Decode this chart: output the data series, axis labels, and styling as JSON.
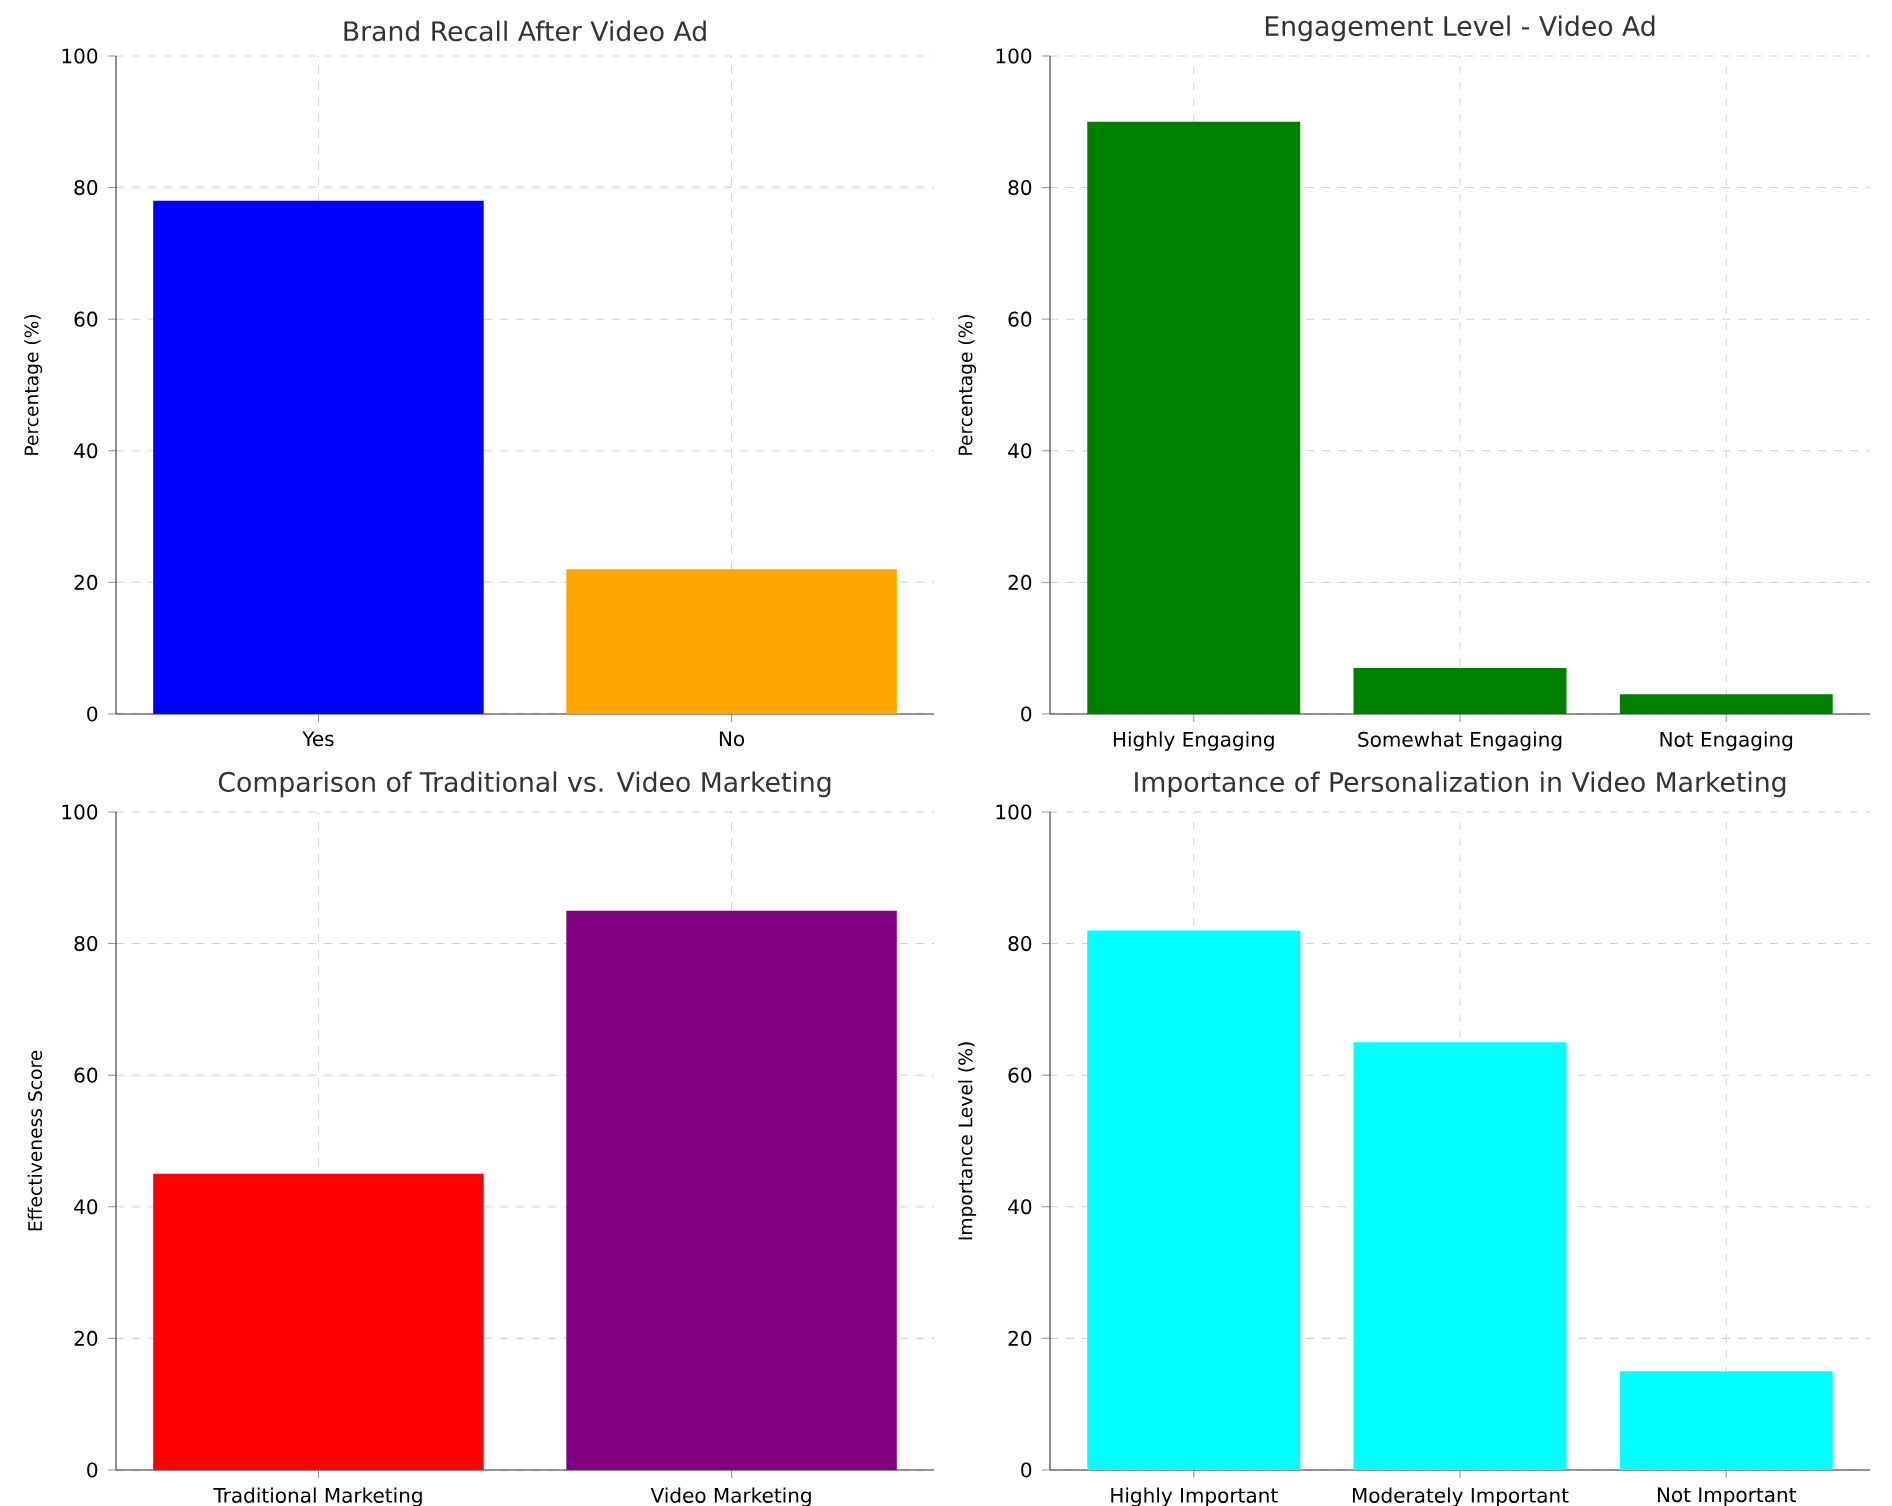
{
  "chart_data": [
    {
      "type": "bar",
      "title": "Brand Recall After Video Ad",
      "ylabel": "Percentage (%)",
      "categories": [
        "Yes",
        "No"
      ],
      "values": [
        78,
        22
      ],
      "colors": [
        "#0000ff",
        "#ffa500"
      ],
      "ylim": [
        0,
        100
      ],
      "yticks": [
        0,
        20,
        40,
        60,
        80,
        100
      ],
      "grid": true
    },
    {
      "type": "bar",
      "title": "Engagement Level - Video Ad",
      "ylabel": "Percentage (%)",
      "categories": [
        "Highly Engaging",
        "Somewhat Engaging",
        "Not Engaging"
      ],
      "values": [
        90,
        7,
        3
      ],
      "colors": [
        "#008000",
        "#008000",
        "#008000"
      ],
      "ylim": [
        0,
        100
      ],
      "yticks": [
        0,
        20,
        40,
        60,
        80,
        100
      ],
      "grid": true
    },
    {
      "type": "bar",
      "title": "Comparison of Traditional vs. Video Marketing",
      "ylabel": "Effectiveness Score",
      "categories": [
        "Traditional Marketing",
        "Video Marketing"
      ],
      "values": [
        45,
        85
      ],
      "colors": [
        "#ff0000",
        "#800080"
      ],
      "ylim": [
        0,
        100
      ],
      "yticks": [
        0,
        20,
        40,
        60,
        80,
        100
      ],
      "grid": true
    },
    {
      "type": "bar",
      "title": "Importance of Personalization in Video Marketing",
      "ylabel": "Importance Level (%)",
      "categories": [
        "Highly Important",
        "Moderately Important",
        "Not Important"
      ],
      "values": [
        82,
        65,
        15
      ],
      "colors": [
        "#00ffff",
        "#00ffff",
        "#00ffff"
      ],
      "ylim": [
        0,
        100
      ],
      "yticks": [
        0,
        20,
        40,
        60,
        80,
        100
      ],
      "grid": true
    }
  ]
}
